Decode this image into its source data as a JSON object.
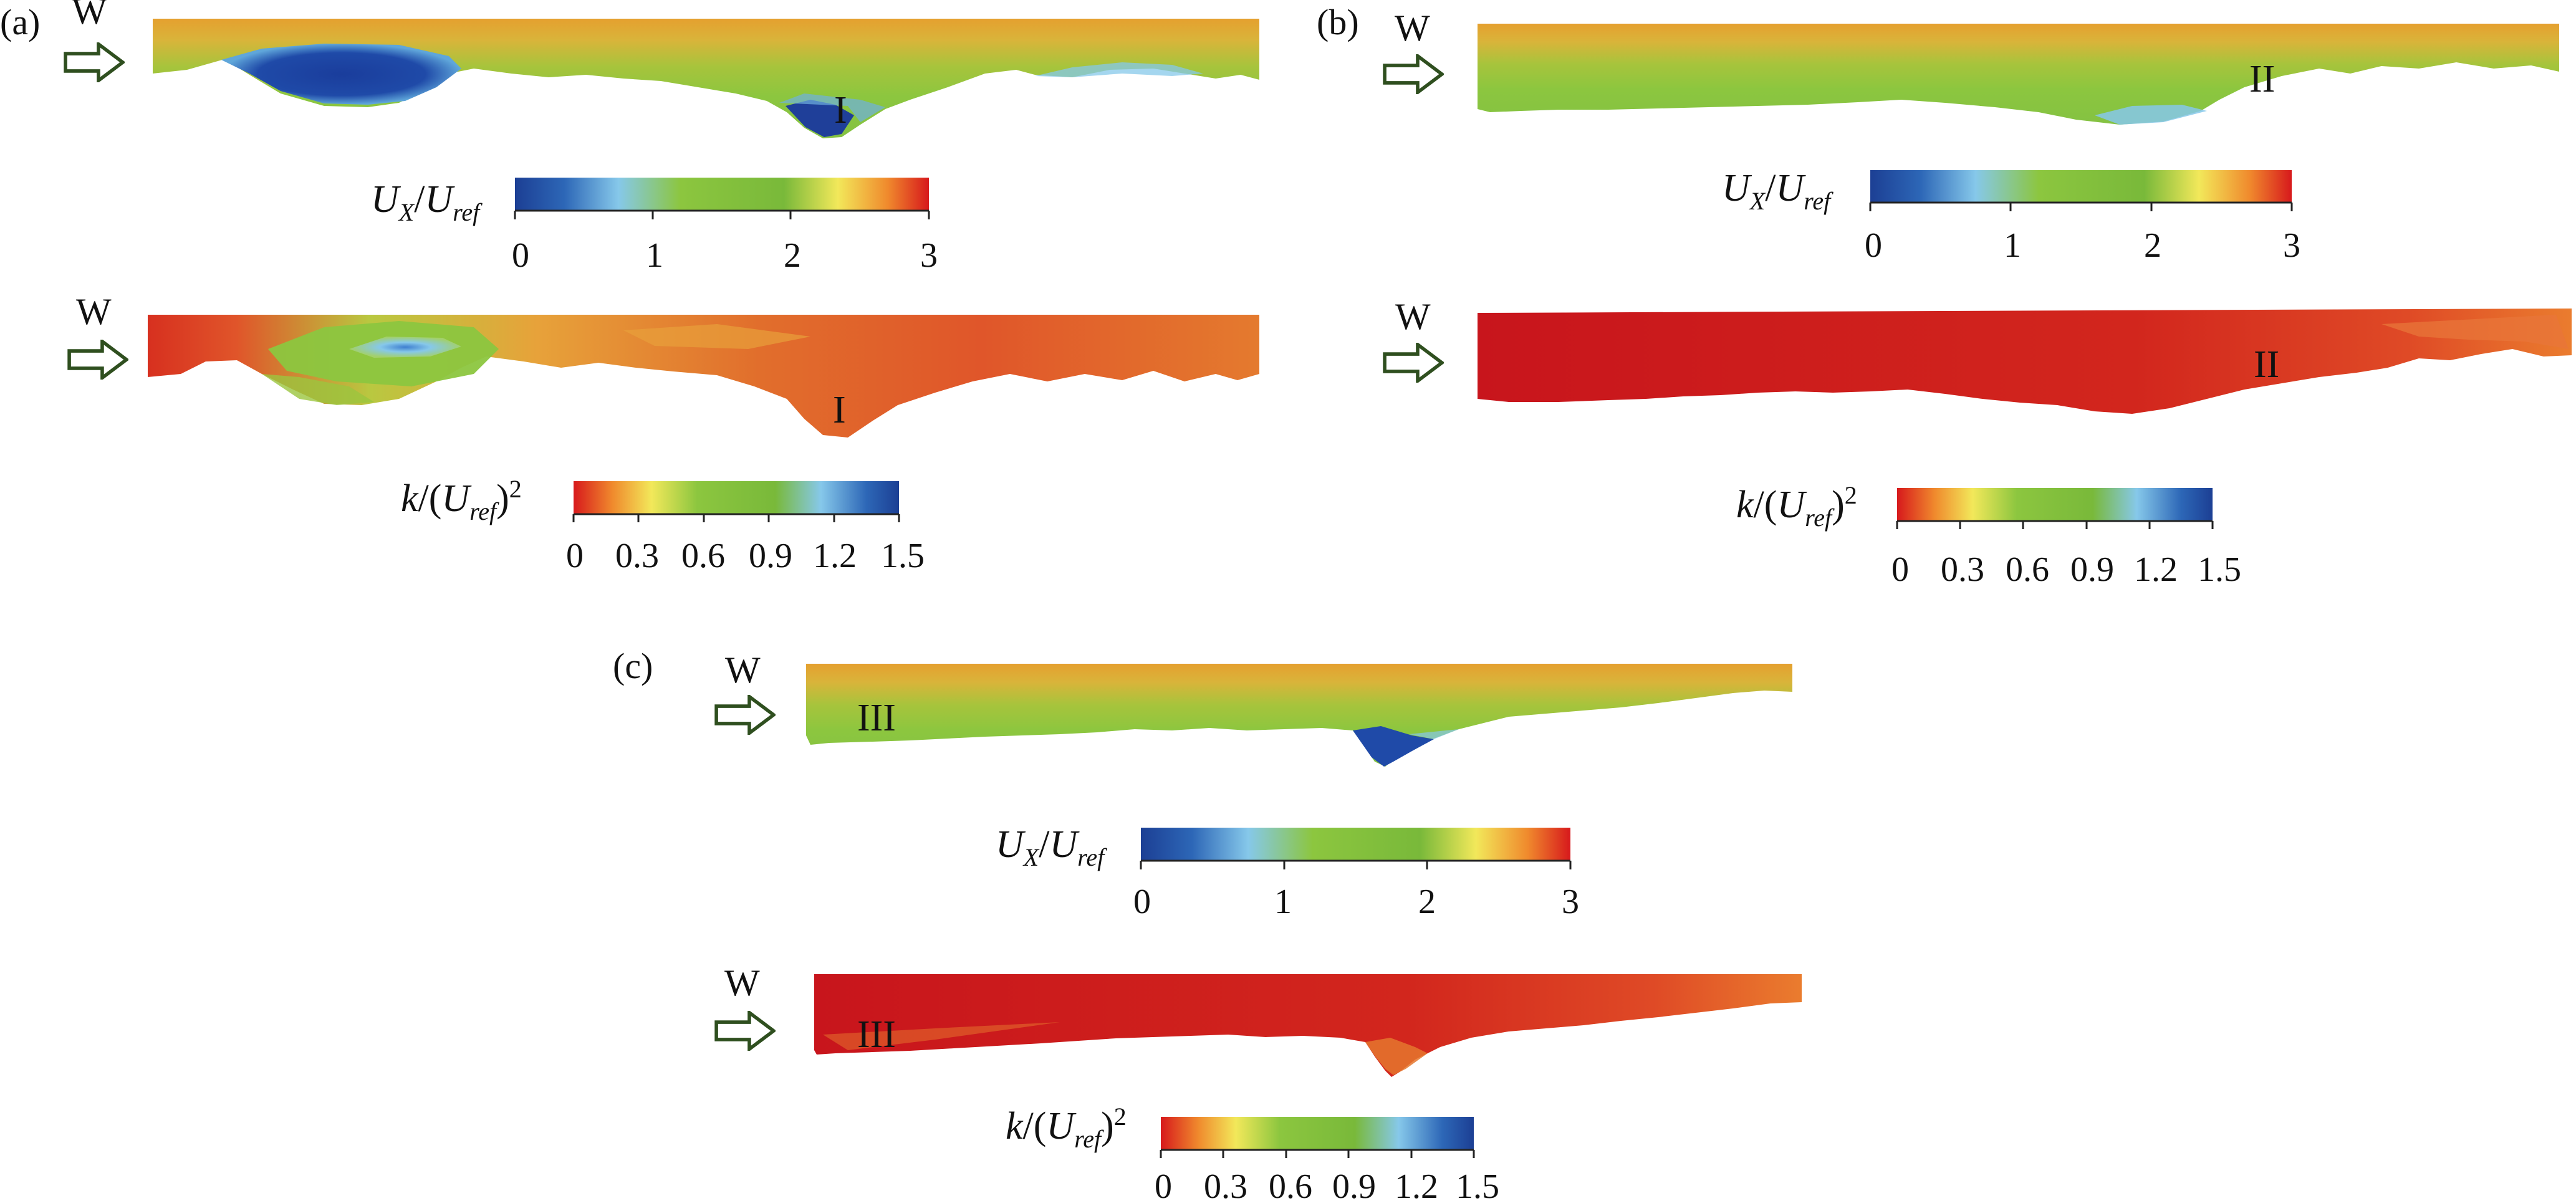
{
  "panels": {
    "a": {
      "label": "(a)",
      "site": "I"
    },
    "b": {
      "label": "(b)",
      "site": "II"
    },
    "c": {
      "label": "(c)",
      "site": "III"
    }
  },
  "wind_label": "W",
  "velocity_colorbar": {
    "title_u": "U",
    "title_sub_x": "X",
    "title_slash": "/",
    "title_u2": "U",
    "title_sub_ref": "ref",
    "ticks": [
      "0",
      "1",
      "2",
      "3"
    ],
    "range": [
      0,
      3
    ],
    "colors": [
      "#1c3f94",
      "#2f6fbd",
      "#7fc4e6",
      "#8cc63f",
      "#6fb43a",
      "#f2e85a",
      "#f29a2e",
      "#d7191c"
    ]
  },
  "tke_colorbar": {
    "title_k": "k",
    "title_slash": "/(",
    "title_u": "U",
    "title_sub_ref": "ref",
    "title_close": ")",
    "title_sup": "2",
    "ticks": [
      "0",
      "0.3",
      "0.6",
      "0.9",
      "1.2",
      "1.5"
    ],
    "range": [
      0,
      1.5
    ],
    "colors": [
      "#d7191c",
      "#f29a2e",
      "#f2e85a",
      "#8cc63f",
      "#6fb43a",
      "#7fc4e6",
      "#2f6fbd",
      "#1c3f94"
    ]
  }
}
